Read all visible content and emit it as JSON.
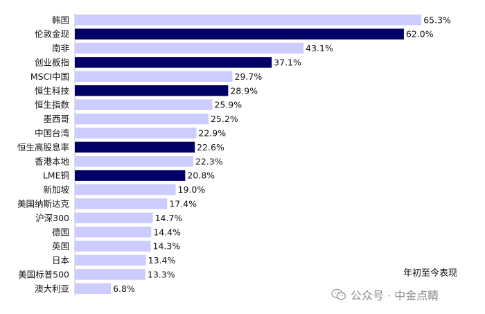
{
  "chart_data": {
    "type": "bar",
    "orientation": "horizontal",
    "categories": [
      "韩国",
      "伦敦金现",
      "南非",
      "创业板指",
      "MSCI中国",
      "恒生科技",
      "恒生指数",
      "墨西哥",
      "中国台湾",
      "恒生高股息率",
      "香港本地",
      "LME铜",
      "新加坡",
      "美国纳斯达克",
      "沪深300",
      "德国",
      "英国",
      "日本",
      "美国标普500",
      "澳大利亚"
    ],
    "values": [
      65.3,
      62.0,
      43.1,
      37.1,
      29.7,
      28.9,
      25.9,
      25.2,
      22.9,
      22.6,
      22.3,
      20.8,
      19.0,
      17.4,
      14.7,
      14.4,
      14.3,
      13.4,
      13.3,
      6.8
    ],
    "value_labels": [
      "65.3%",
      "62.0%",
      "43.1%",
      "37.1%",
      "29.7%",
      "28.9%",
      "25.9%",
      "25.2%",
      "22.9%",
      "22.6%",
      "22.3%",
      "20.8%",
      "19.0%",
      "17.4%",
      "14.7%",
      "14.4%",
      "14.3%",
      "13.4%",
      "13.3%",
      "6.8%"
    ],
    "highlighted": [
      false,
      true,
      false,
      true,
      false,
      true,
      false,
      false,
      false,
      true,
      false,
      true,
      false,
      false,
      false,
      false,
      false,
      false,
      false,
      false
    ],
    "colors": {
      "default": "#ccccff",
      "highlight": "#000066"
    },
    "xlim": [
      0,
      70
    ],
    "grid": false,
    "legend": "none"
  },
  "annotation": "年初至今表现",
  "watermark": {
    "text": "公众号 · 中金点睛",
    "icon": "wechat-icon"
  }
}
